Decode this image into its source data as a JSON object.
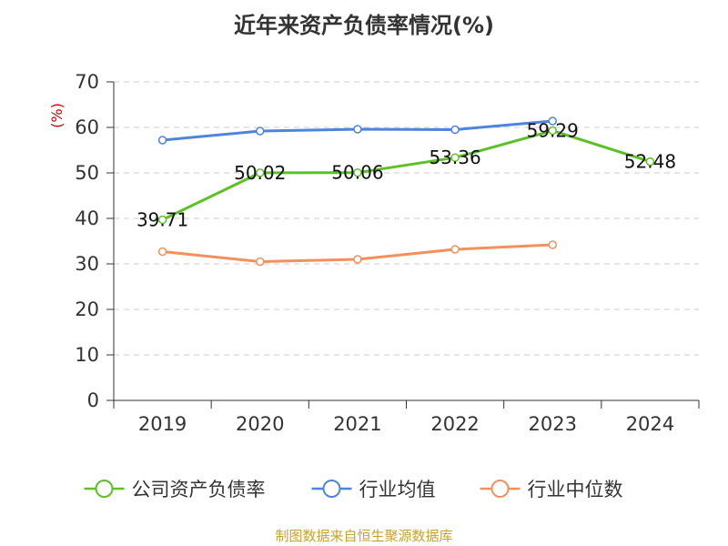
{
  "title": "近年来资产负债率情况(%)",
  "source": "制图数据来自恒生聚源数据库",
  "colors": {
    "company": "#5dc126",
    "industry_avg": "#4f84dd",
    "industry_median": "#f4905c",
    "unit_label": "#cc0000",
    "source": "#c9a227",
    "grid": "#cccccc",
    "axis": "#333333"
  },
  "chart_data": {
    "type": "line",
    "title": "近年来资产负债率情况(%)",
    "ylabel": "(%)",
    "xlabel": "",
    "ylim": [
      0,
      70
    ],
    "yticks": [
      0,
      10,
      20,
      30,
      40,
      50,
      60,
      70
    ],
    "categories": [
      "2019",
      "2020",
      "2021",
      "2022",
      "2023",
      "2024"
    ],
    "grid": "horizontal-dashed",
    "legend_position": "bottom",
    "series": [
      {
        "name": "公司资产负债率",
        "color": "#5dc126",
        "values": [
          39.71,
          50.02,
          50.06,
          53.36,
          59.29,
          52.48
        ],
        "labels": [
          "39.71",
          "50.02",
          "50.06",
          "53.36",
          "59.29",
          "52.48"
        ]
      },
      {
        "name": "行业均值",
        "color": "#4f84dd",
        "values": [
          57.2,
          59.2,
          59.6,
          59.5,
          61.4,
          null
        ]
      },
      {
        "name": "行业中位数",
        "color": "#f4905c",
        "values": [
          32.7,
          30.5,
          31.0,
          33.2,
          34.2,
          null
        ]
      }
    ]
  }
}
